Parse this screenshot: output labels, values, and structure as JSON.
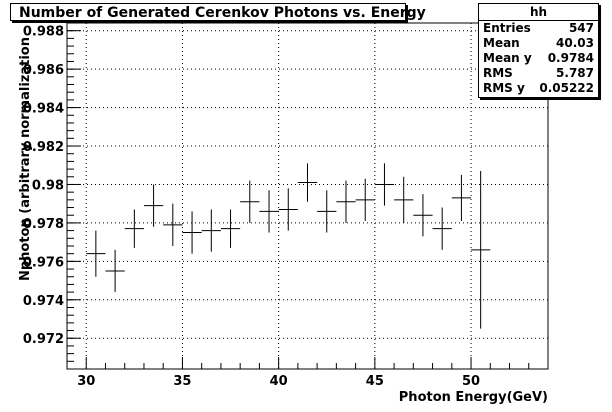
{
  "window": {
    "title": "Number of Generated Cerenkov Photons vs. Energy"
  },
  "stats": {
    "name": "hh",
    "entries_label": "Entries",
    "entries": "547",
    "mean_label": "Mean",
    "mean": "40.03",
    "meany_label": "Mean y",
    "meany": "0.9784",
    "rms_label": "RMS",
    "rms": "5.787",
    "rmsy_label": "RMS y",
    "rmsy": "0.05222"
  },
  "chart_data": {
    "type": "scatter",
    "title": "Number of Generated Cerenkov Photons vs. Energy",
    "xlabel": "Photon Energy(GeV)",
    "ylabel": "Nphoton (arbitrary normalization",
    "xlim": [
      29,
      54
    ],
    "ylim": [
      0.9704,
      0.9884
    ],
    "grid": true,
    "x_ticks": [
      30,
      35,
      40,
      45,
      50
    ],
    "y_ticks": [
      0.972,
      0.974,
      0.976,
      0.978,
      0.98,
      0.982,
      0.984,
      0.986,
      0.988
    ],
    "y_tick_labels": [
      "0.972",
      "0.974",
      "0.976",
      "0.978",
      "0.98",
      "0.982",
      "0.984",
      "0.986",
      "0.988"
    ],
    "bin_width": 1,
    "points": [
      {
        "x": 30.5,
        "y": 0.9764,
        "err": 0.0012
      },
      {
        "x": 31.5,
        "y": 0.9755,
        "err": 0.0011
      },
      {
        "x": 32.5,
        "y": 0.9777,
        "err": 0.001
      },
      {
        "x": 33.5,
        "y": 0.9789,
        "err": 0.0011
      },
      {
        "x": 34.5,
        "y": 0.9779,
        "err": 0.0011
      },
      {
        "x": 35.5,
        "y": 0.9775,
        "err": 0.0011
      },
      {
        "x": 36.5,
        "y": 0.9776,
        "err": 0.0011
      },
      {
        "x": 37.5,
        "y": 0.9777,
        "err": 0.001
      },
      {
        "x": 38.5,
        "y": 0.9791,
        "err": 0.0011
      },
      {
        "x": 39.5,
        "y": 0.9786,
        "err": 0.0011
      },
      {
        "x": 40.5,
        "y": 0.9787,
        "err": 0.0011
      },
      {
        "x": 41.5,
        "y": 0.9801,
        "err": 0.001
      },
      {
        "x": 42.5,
        "y": 0.9786,
        "err": 0.0011
      },
      {
        "x": 43.5,
        "y": 0.9791,
        "err": 0.0011
      },
      {
        "x": 44.5,
        "y": 0.9792,
        "err": 0.0011
      },
      {
        "x": 45.5,
        "y": 0.98,
        "err": 0.0011
      },
      {
        "x": 46.5,
        "y": 0.9792,
        "err": 0.0012
      },
      {
        "x": 47.5,
        "y": 0.9784,
        "err": 0.0011
      },
      {
        "x": 48.5,
        "y": 0.9777,
        "err": 0.0011
      },
      {
        "x": 49.5,
        "y": 0.9793,
        "err": 0.0012
      },
      {
        "x": 50.5,
        "y": 0.9766,
        "err": 0.0041
      }
    ]
  }
}
